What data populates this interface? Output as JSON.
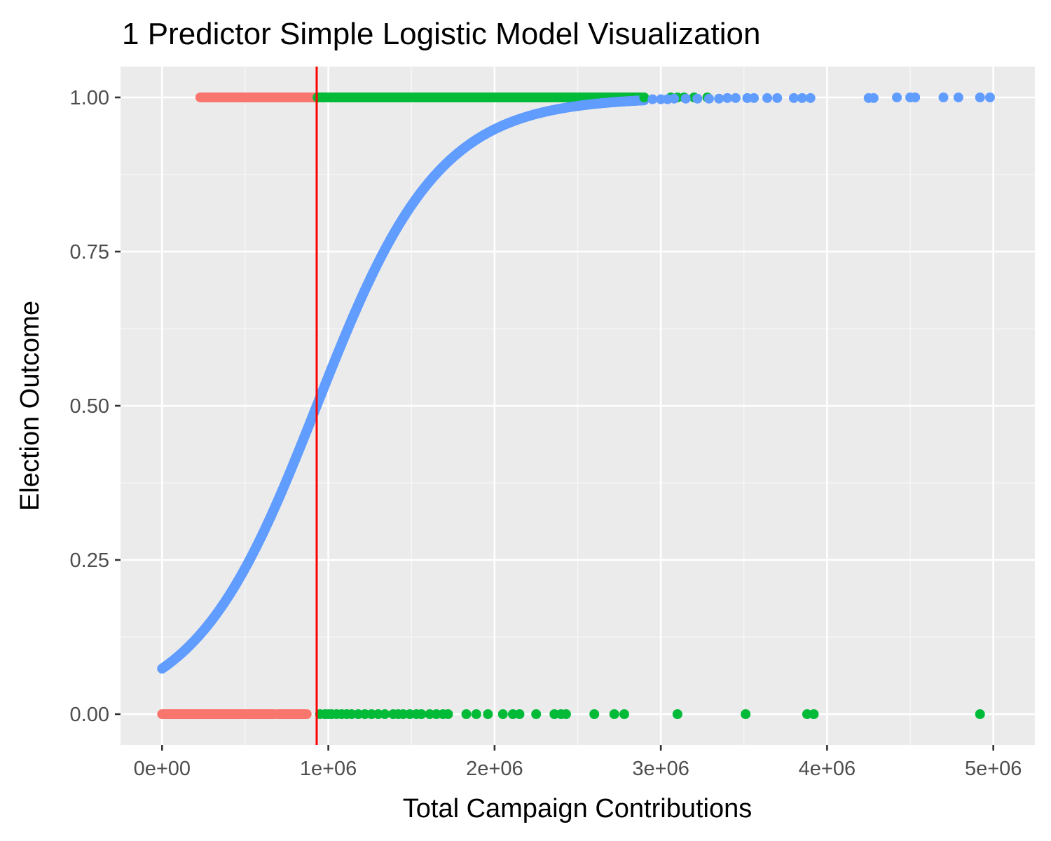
{
  "chart_data": {
    "type": "scatter",
    "title": "1 Predictor Simple Logistic Model Visualization",
    "xlabel": "Total Campaign Contributions",
    "ylabel": "Election Outcome",
    "xlim": [
      -250000,
      5250000
    ],
    "ylim": [
      -0.05,
      1.05
    ],
    "x_ticks": [
      0,
      1000000,
      2000000,
      3000000,
      4000000,
      5000000
    ],
    "x_tick_labels": [
      "0e+00",
      "1e+06",
      "2e+06",
      "3e+06",
      "4e+06",
      "5e+06"
    ],
    "y_ticks": [
      0,
      0.25,
      0.5,
      0.75,
      1.0
    ],
    "y_tick_labels": [
      "0.00",
      "0.25",
      "0.50",
      "0.75",
      "1.00"
    ],
    "grid": true,
    "legend": "none",
    "colors": {
      "panel_background": "#ebebeb",
      "grid_major": "#ffffff",
      "grid_minor": "#f7f7f7",
      "observed_below_threshold": "#f8766d",
      "observed_above_threshold": "#00ba38",
      "fitted_probability": "#619cff",
      "threshold_line": "#ff0000"
    },
    "threshold_x": 930000,
    "logistic_fit": {
      "intercept": -2.53,
      "slope": 2.72e-06,
      "x_range": [
        0,
        2900000
      ]
    },
    "observed_bands": [
      {
        "y": 1,
        "color_key": "observed_below_threshold",
        "x_from": 230000,
        "x_to": 925000
      },
      {
        "y": 1,
        "color_key": "observed_above_threshold",
        "x_from": 935000,
        "x_to": 2880000
      },
      {
        "y": 0,
        "color_key": "observed_below_threshold",
        "x_from": 0,
        "x_to": 680000
      },
      {
        "y": 0,
        "color_key": "observed_below_threshold",
        "x_from": 700000,
        "x_to": 870000
      }
    ],
    "series": [
      {
        "color_key": "observed_above_threshold",
        "points": [
          [
            950000,
            0
          ],
          [
            980000,
            0
          ],
          [
            1000000,
            0
          ],
          [
            1020000,
            0
          ],
          [
            1050000,
            0
          ],
          [
            1080000,
            0
          ],
          [
            1110000,
            0
          ],
          [
            1140000,
            0
          ],
          [
            1180000,
            0
          ],
          [
            1220000,
            0
          ],
          [
            1260000,
            0
          ],
          [
            1300000,
            0
          ],
          [
            1340000,
            0
          ],
          [
            1390000,
            0
          ],
          [
            1420000,
            0
          ],
          [
            1450000,
            0
          ],
          [
            1490000,
            0
          ],
          [
            1530000,
            0
          ],
          [
            1560000,
            0
          ],
          [
            1610000,
            0
          ],
          [
            1650000,
            0
          ],
          [
            1690000,
            0
          ],
          [
            1720000,
            0
          ],
          [
            1830000,
            0
          ],
          [
            1890000,
            0
          ],
          [
            1960000,
            0
          ],
          [
            2050000,
            0
          ],
          [
            2110000,
            0
          ],
          [
            2150000,
            0
          ],
          [
            2250000,
            0
          ],
          [
            2360000,
            0
          ],
          [
            2400000,
            0
          ],
          [
            2430000,
            0
          ],
          [
            2600000,
            0
          ],
          [
            2720000,
            0
          ],
          [
            2780000,
            0
          ],
          [
            3100000,
            0
          ],
          [
            3510000,
            0
          ],
          [
            3880000,
            0
          ],
          [
            3920000,
            0
          ],
          [
            4920000,
            0
          ],
          [
            2900000,
            1
          ],
          [
            3060000,
            1
          ],
          [
            3100000,
            1
          ],
          [
            3140000,
            1
          ],
          [
            3200000,
            1
          ],
          [
            3280000,
            1
          ]
        ]
      },
      {
        "color_key": "fitted_probability",
        "points": [
          [
            2950000,
            0.997
          ],
          [
            3000000,
            0.997
          ],
          [
            3040000,
            0.997
          ],
          [
            3080000,
            0.998
          ],
          [
            3150000,
            0.998
          ],
          [
            3220000,
            0.998
          ],
          [
            3290000,
            0.998
          ],
          [
            3350000,
            0.998
          ],
          [
            3400000,
            0.999
          ],
          [
            3450000,
            0.999
          ],
          [
            3520000,
            0.999
          ],
          [
            3560000,
            0.999
          ],
          [
            3640000,
            0.999
          ],
          [
            3700000,
            0.999
          ],
          [
            3800000,
            0.999
          ],
          [
            3850000,
            0.999
          ],
          [
            3900000,
            0.999
          ],
          [
            4250000,
            0.999
          ],
          [
            4280000,
            0.999
          ],
          [
            4420000,
            1.0
          ],
          [
            4500000,
            1.0
          ],
          [
            4530000,
            1.0
          ],
          [
            4700000,
            1.0
          ],
          [
            4790000,
            1.0
          ],
          [
            4920000,
            1.0
          ],
          [
            4980000,
            1.0
          ]
        ]
      }
    ]
  }
}
